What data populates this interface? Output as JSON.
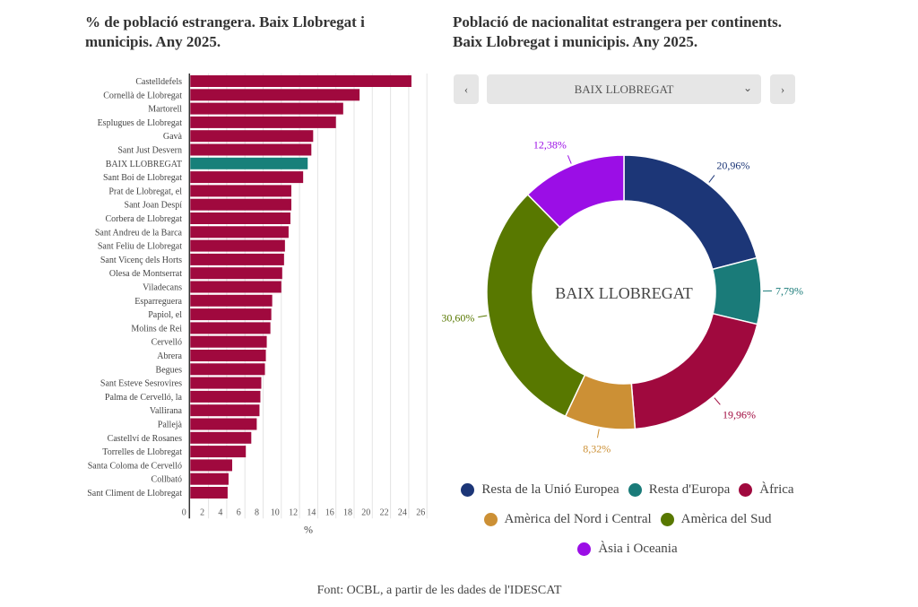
{
  "chart_data": [
    {
      "type": "bar",
      "orientation": "horizontal",
      "title": "% de població estrangera. Baix Llobregat i municipis. Any 2025.",
      "xlabel": "%",
      "xlim": [
        0,
        26
      ],
      "xticks": [
        0,
        2,
        4,
        6,
        8,
        10,
        12,
        14,
        16,
        18,
        20,
        22,
        24,
        26
      ],
      "grid": true,
      "colors": {
        "default": "#a0093e",
        "highlight": "#17807a"
      },
      "highlight": "BAIX LLOBREGAT",
      "categories": [
        "Castelldefels",
        "Cornellà de Llobregat",
        "Martorell",
        "Esplugues de Llobregat",
        "Gavà",
        "Sant Just Desvern",
        "BAIX LLOBREGAT",
        "Sant Boi de Llobregat",
        "Prat de Llobregat, el",
        "Sant Joan Despí",
        "Corbera de Llobregat",
        "Sant Andreu de la Barca",
        "Sant Feliu de Llobregat",
        "Sant Vicenç dels Horts",
        "Olesa de Montserrat",
        "Viladecans",
        "Esparreguera",
        "Papiol, el",
        "Molins de Rei",
        "Cervelló",
        "Abrera",
        "Begues",
        "Sant Esteve Sesrovires",
        "Palma de Cervelló, la",
        "Vallirana",
        "Pallejà",
        "Castellví de Rosanes",
        "Torrelles de Llobregat",
        "Santa Coloma de Cervelló",
        "Collbató",
        "Sant Climent de Llobregat"
      ],
      "values": [
        24.3,
        18.6,
        16.8,
        16.0,
        13.5,
        13.3,
        12.9,
        12.4,
        11.1,
        11.1,
        11.0,
        10.8,
        10.4,
        10.3,
        10.1,
        10.0,
        9.0,
        8.9,
        8.8,
        8.4,
        8.3,
        8.2,
        7.8,
        7.7,
        7.6,
        7.3,
        6.7,
        6.1,
        4.6,
        4.2,
        4.1
      ]
    },
    {
      "type": "pie",
      "donut": true,
      "title": "Població de nacionalitat estrangera per continents. Baix Llobregat i municipis. Any 2025.",
      "center_label": "BAIX LLOBREGAT",
      "legend_position": "bottom",
      "slices": [
        {
          "name": "Resta de la Unió Europea",
          "value": 20.96,
          "label": "20,96%",
          "color": "#1c3677"
        },
        {
          "name": "Resta d'Europa",
          "value": 7.79,
          "label": "7,79%",
          "color": "#1a7b79"
        },
        {
          "name": "Àfrica",
          "value": 19.96,
          "label": "19,96%",
          "color": "#a0093e"
        },
        {
          "name": "Amèrica del Nord i Central",
          "value": 8.32,
          "label": "8,32%",
          "color": "#cc9035"
        },
        {
          "name": "Amèrica del Sud",
          "value": 30.6,
          "label": "30,60%",
          "color": "#587800"
        },
        {
          "name": "Àsia i Oceania",
          "value": 12.38,
          "label": "12,38%",
          "color": "#9b0ee6"
        }
      ]
    }
  ],
  "selector": {
    "value": "BAIX LLOBREGAT",
    "prev_icon": "chevron-left-icon",
    "next_icon": "chevron-right-icon",
    "dropdown_icon": "chevron-down-icon"
  },
  "footer": "Font: OCBL, a partir de les dades de l'IDESCAT"
}
